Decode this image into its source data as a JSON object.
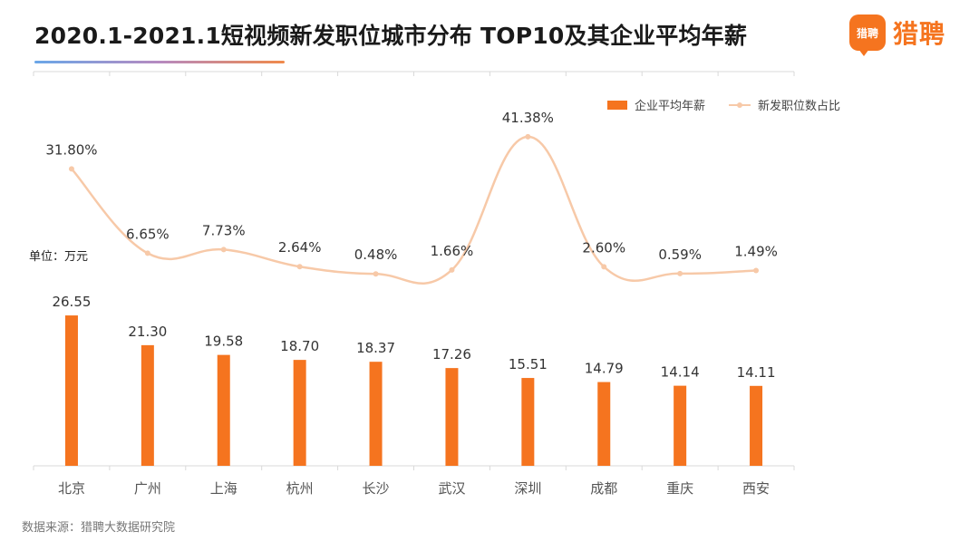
{
  "header": {
    "title": "2020.1-2021.1短视频新发职位城市分布 TOP10及其企业平均年薪"
  },
  "brand": {
    "badge_text": "猎聘",
    "name": "猎聘",
    "color": "#f5741f"
  },
  "unit_label": "单位：万元",
  "source": "数据来源：猎聘大数据研究院",
  "chart_data": {
    "type": "bar",
    "categories": [
      "北京",
      "广州",
      "上海",
      "杭州",
      "长沙",
      "武汉",
      "深圳",
      "成都",
      "重庆",
      "西安"
    ],
    "series": [
      {
        "name": "企业平均年薪",
        "type": "bar",
        "color": "#f5741f",
        "values": [
          26.55,
          21.3,
          19.58,
          18.7,
          18.37,
          17.26,
          15.51,
          14.79,
          14.14,
          14.11
        ],
        "labels": [
          "26.55",
          "21.30",
          "19.58",
          "18.70",
          "18.37",
          "17.26",
          "15.51",
          "14.79",
          "14.14",
          "14.11"
        ]
      },
      {
        "name": "新发职位数占比",
        "type": "line",
        "color": "#f7c9a8",
        "values": [
          31.8,
          6.65,
          7.73,
          2.64,
          0.48,
          1.66,
          41.38,
          2.6,
          0.59,
          1.49
        ],
        "labels": [
          "31.80%",
          "6.65%",
          "7.73%",
          "2.64%",
          "0.48%",
          "1.66%",
          "41.38%",
          "2.60%",
          "0.59%",
          "1.49%"
        ]
      }
    ],
    "legend_position": "top-right",
    "grid": false
  }
}
